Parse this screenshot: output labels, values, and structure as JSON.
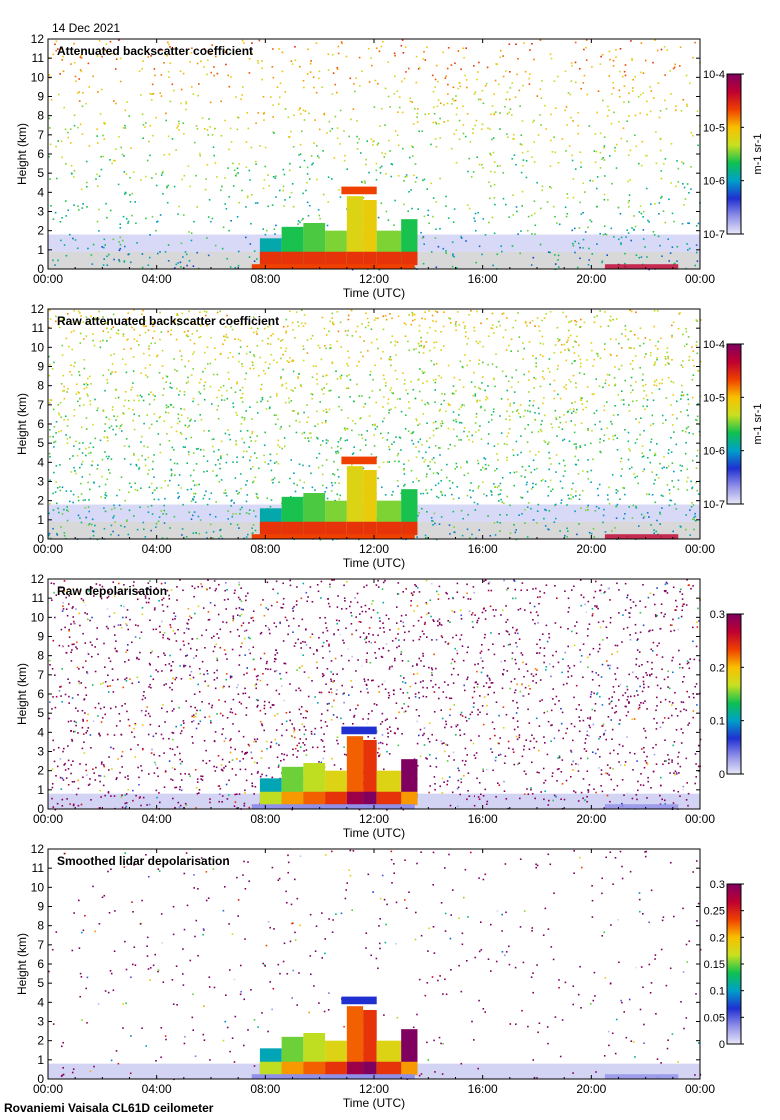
{
  "date": "14 Dec 2021",
  "footer": "Rovaniemi Vaisala CL61D ceilometer",
  "chart_data": [
    {
      "type": "heatmap",
      "title": "Attenuated backscatter coefficient",
      "xlabel": "Time (UTC)",
      "ylabel": "Height (km)",
      "xlim": [
        0,
        24
      ],
      "ylim": [
        0,
        12
      ],
      "x_ticks": [
        "00:00",
        "04:00",
        "08:00",
        "12:00",
        "16:00",
        "20:00",
        "00:00"
      ],
      "y_ticks": [
        "0",
        "1",
        "2",
        "3",
        "4",
        "5",
        "6",
        "7",
        "8",
        "9",
        "10",
        "11",
        "12"
      ],
      "colorbar": {
        "scale": "log",
        "range": [
          1e-07,
          0.0001
        ],
        "ticks": [
          "10-7",
          "10-6",
          "10-5",
          "10-4"
        ],
        "unit": "m-1 sr-1"
      },
      "features": {
        "noise": 0.55,
        "cloud": true
      }
    },
    {
      "type": "heatmap",
      "title": "Raw attenuated backscatter coefficient",
      "xlabel": "Time (UTC)",
      "ylabel": "Height (km)",
      "xlim": [
        0,
        24
      ],
      "ylim": [
        0,
        12
      ],
      "x_ticks": [
        "00:00",
        "04:00",
        "08:00",
        "12:00",
        "16:00",
        "20:00",
        "00:00"
      ],
      "y_ticks": [
        "0",
        "1",
        "2",
        "3",
        "4",
        "5",
        "6",
        "7",
        "8",
        "9",
        "10",
        "11",
        "12"
      ],
      "colorbar": {
        "scale": "log",
        "range": [
          1e-07,
          0.0001
        ],
        "ticks": [
          "10-7",
          "10-6",
          "10-5",
          "10-4"
        ],
        "unit": "m-1 sr-1"
      },
      "features": {
        "noise": 1.0,
        "cloud": true
      }
    },
    {
      "type": "heatmap",
      "title": "Raw depolarisation",
      "xlabel": "Time (UTC)",
      "ylabel": "Height (km)",
      "xlim": [
        0,
        24
      ],
      "ylim": [
        0,
        12
      ],
      "x_ticks": [
        "00:00",
        "04:00",
        "08:00",
        "12:00",
        "16:00",
        "20:00",
        "00:00"
      ],
      "y_ticks": [
        "0",
        "1",
        "2",
        "3",
        "4",
        "5",
        "6",
        "7",
        "8",
        "9",
        "10",
        "11",
        "12"
      ],
      "colorbar": {
        "scale": "linear",
        "range": [
          0,
          0.3
        ],
        "ticks": [
          "0",
          "0.1",
          "0.2",
          "0.3"
        ],
        "unit": ""
      },
      "features": {
        "noise": 1.0,
        "cloud": true
      }
    },
    {
      "type": "heatmap",
      "title": "Smoothed lidar depolarisation",
      "xlabel": "Time (UTC)",
      "ylabel": "Height (km)",
      "xlim": [
        0,
        24
      ],
      "ylim": [
        0,
        12
      ],
      "x_ticks": [
        "00:00",
        "04:00",
        "08:00",
        "12:00",
        "16:00",
        "20:00",
        "00:00"
      ],
      "y_ticks": [
        "0",
        "1",
        "2",
        "3",
        "4",
        "5",
        "6",
        "7",
        "8",
        "9",
        "10",
        "11",
        "12"
      ],
      "colorbar": {
        "scale": "linear",
        "range": [
          0,
          0.3
        ],
        "ticks": [
          "0",
          "0.05",
          "0.1",
          "0.15",
          "0.2",
          "0.25",
          "0.3"
        ],
        "unit": ""
      },
      "features": {
        "noise": 0.2,
        "cloud": true
      }
    }
  ],
  "colors": {
    "colormap": [
      "#e8e8f8",
      "#9090e8",
      "#2030d0",
      "#00a0c8",
      "#10c050",
      "#c8e020",
      "#f8c000",
      "#f04000",
      "#c00030",
      "#800060"
    ],
    "low_signal": "#d8d8d8"
  }
}
